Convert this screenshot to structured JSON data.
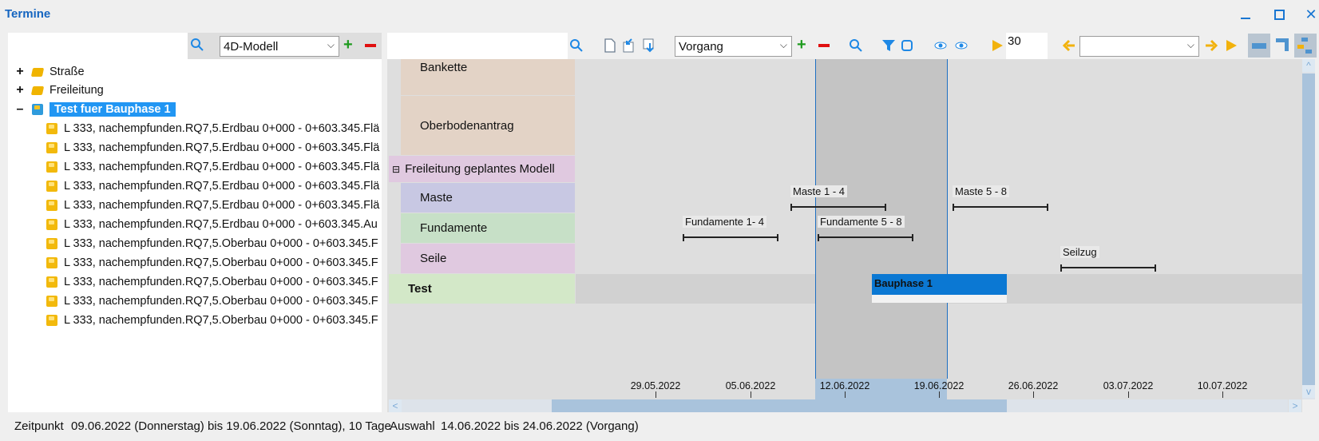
{
  "window": {
    "title": "Termine"
  },
  "left_toolbar": {
    "model_select": "4D-Modell"
  },
  "tree": [
    {
      "label": "Straße",
      "expander": "+",
      "type": "folder"
    },
    {
      "label": "Freileitung",
      "expander": "+",
      "type": "folder"
    },
    {
      "label": "Test fuer Bauphase 1",
      "expander": "–",
      "type": "cube-blue",
      "selected": true
    }
  ],
  "tree_children": [
    "L 333, nachempfunden.RQ7,5.Erdbau 0+000 - 0+603.345.Flä",
    "L 333, nachempfunden.RQ7,5.Erdbau 0+000 - 0+603.345.Flä",
    "L 333, nachempfunden.RQ7,5.Erdbau 0+000 - 0+603.345.Flä",
    "L 333, nachempfunden.RQ7,5.Erdbau 0+000 - 0+603.345.Flä",
    "L 333, nachempfunden.RQ7,5.Erdbau 0+000 - 0+603.345.Flä",
    "L 333, nachempfunden.RQ7,5.Erdbau 0+000 - 0+603.345.Au",
    "L 333, nachempfunden.RQ7,5.Oberbau 0+000 - 0+603.345.F",
    "L 333, nachempfunden.RQ7,5.Oberbau 0+000 - 0+603.345.F",
    "L 333, nachempfunden.RQ7,5.Oberbau 0+000 - 0+603.345.F",
    "L 333, nachempfunden.RQ7,5.Oberbau 0+000 - 0+603.345.F",
    "L 333, nachempfunden.RQ7,5.Oberbau 0+000 - 0+603.345.F"
  ],
  "right_toolbar": {
    "type_select": "Vorgang",
    "step_value": "30",
    "period_select": ""
  },
  "gantt_rows": [
    {
      "label": "Bankette"
    },
    {
      "label": "Oberbodenantrag"
    },
    {
      "label": "Freileitung geplantes Modell",
      "expander": "⊟"
    },
    {
      "label": "Maste"
    },
    {
      "label": "Fundamente"
    },
    {
      "label": "Seile"
    },
    {
      "label": "Test"
    }
  ],
  "gantt_bars": [
    {
      "label": "Maste 1 - 4"
    },
    {
      "label": "Maste 5 - 8"
    },
    {
      "label": "Fundamente 1- 4"
    },
    {
      "label": "Fundamente 5 - 8"
    },
    {
      "label": "Seilzug"
    },
    {
      "label": "Bauphase 1"
    }
  ],
  "timeline_dates": [
    "29.05.2022",
    "05.06.2022",
    "12.06.2022",
    "19.06.2022",
    "26.06.2022",
    "03.07.2022",
    "10.07.2022"
  ],
  "status": {
    "zeitpunkt_label": "Zeitpunkt",
    "zeitpunkt_value": "09.06.2022 (Donnerstag) bis 19.06.2022 (Sonntag), 10 Tage",
    "auswahl_label": "Auswahl",
    "auswahl_value": "14.06.2022 bis 24.06.2022 (Vorgang)"
  },
  "colors": {
    "accent": "#1e6fc2",
    "selected": "#2196f3",
    "bar": "#0b78d3"
  }
}
